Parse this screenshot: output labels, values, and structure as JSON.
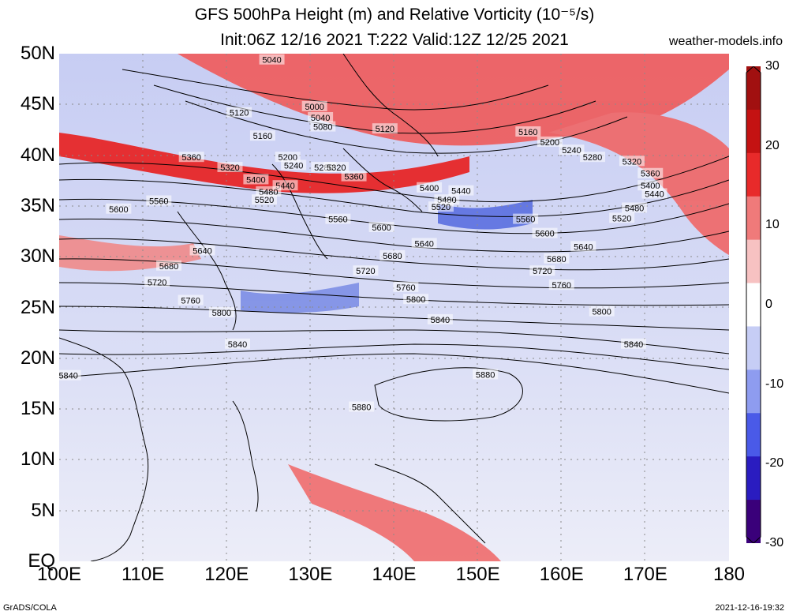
{
  "title_line1": "GFS 500hPa Height (m) and Relative Vorticity (10⁻⁵/s)",
  "title_line2": "Init:06Z 12/16 2021 T:222 Valid:12Z 12/25 2021",
  "site": "weather-models.info",
  "credit_left": "GrADS/COLA",
  "credit_right": "2021-12-16-19:32",
  "lat_labels": [
    "50N",
    "45N",
    "40N",
    "35N",
    "30N",
    "25N",
    "20N",
    "15N",
    "10N",
    "5N",
    "EQ"
  ],
  "lon_labels": [
    "100E",
    "110E",
    "120E",
    "130E",
    "140E",
    "150E",
    "160E",
    "170E",
    "180"
  ],
  "colorbar": {
    "ticks": [
      "30",
      "20",
      "10",
      "0",
      "-10",
      "-20",
      "-30"
    ],
    "colors": [
      "#3a007a",
      "#2a1cc0",
      "#4a5ae8",
      "#8e9cf0",
      "#c6cdf5",
      "#ffffff",
      "#f7c2c2",
      "#f07a7a",
      "#e82a2a",
      "#c41212",
      "#a11010"
    ]
  },
  "map": {
    "lon_range": [
      100,
      180
    ],
    "lat_range": [
      0,
      50
    ],
    "contours": [
      {
        "value": "5000",
        "labels": [
          [
            130.5,
            44.8
          ]
        ]
      },
      {
        "value": "5040",
        "labels": [
          [
            125.4,
            49.4
          ],
          [
            131.2,
            43.7
          ]
        ]
      },
      {
        "value": "5080",
        "labels": [
          [
            131.5,
            42.8
          ]
        ]
      },
      {
        "value": "5120",
        "labels": [
          [
            121.5,
            44.2
          ],
          [
            138.9,
            42.6
          ]
        ]
      },
      {
        "value": "5160",
        "labels": [
          [
            124.3,
            41.9
          ],
          [
            156.0,
            42.3
          ]
        ]
      },
      {
        "value": "5200",
        "labels": [
          [
            127.3,
            39.8
          ],
          [
            158.6,
            41.3
          ]
        ]
      },
      {
        "value": "5240",
        "labels": [
          [
            128.0,
            39.0
          ],
          [
            161.2,
            40.5
          ]
        ]
      },
      {
        "value": "5280",
        "labels": [
          [
            131.6,
            38.8
          ],
          [
            163.7,
            39.8
          ]
        ]
      },
      {
        "value": "5320",
        "labels": [
          [
            120.4,
            38.8
          ],
          [
            133.1,
            38.8
          ],
          [
            168.4,
            39.4
          ]
        ]
      },
      {
        "value": "5360",
        "labels": [
          [
            115.8,
            39.8
          ],
          [
            135.2,
            37.9
          ],
          [
            170.6,
            38.2
          ]
        ]
      },
      {
        "value": "5400",
        "labels": [
          [
            123.5,
            37.6
          ],
          [
            144.2,
            36.8
          ],
          [
            170.6,
            37.0
          ]
        ]
      },
      {
        "value": "5440",
        "labels": [
          [
            127.0,
            37.0
          ],
          [
            148.0,
            36.5
          ],
          [
            171.1,
            36.2
          ]
        ]
      },
      {
        "value": "5480",
        "labels": [
          [
            125.0,
            36.4
          ],
          [
            146.3,
            35.6
          ],
          [
            168.7,
            34.8
          ]
        ]
      },
      {
        "value": "5520",
        "labels": [
          [
            124.5,
            35.6
          ],
          [
            145.6,
            34.9
          ],
          [
            167.2,
            33.8
          ]
        ]
      },
      {
        "value": "5560",
        "labels": [
          [
            111.9,
            35.5
          ],
          [
            133.3,
            33.7
          ],
          [
            155.7,
            33.7
          ]
        ]
      },
      {
        "value": "5600",
        "labels": [
          [
            107.1,
            34.7
          ],
          [
            138.5,
            32.9
          ],
          [
            158.0,
            32.3
          ]
        ]
      },
      {
        "value": "5640",
        "labels": [
          [
            117.1,
            30.6
          ],
          [
            143.6,
            31.3
          ],
          [
            162.6,
            31.0
          ]
        ]
      },
      {
        "value": "5680",
        "labels": [
          [
            113.1,
            29.1
          ],
          [
            139.8,
            30.1
          ],
          [
            159.4,
            29.8
          ]
        ]
      },
      {
        "value": "5720",
        "labels": [
          [
            111.7,
            27.5
          ],
          [
            136.6,
            28.6
          ],
          [
            157.7,
            28.6
          ]
        ]
      },
      {
        "value": "5760",
        "labels": [
          [
            115.7,
            25.7
          ],
          [
            141.4,
            27.0
          ],
          [
            160.0,
            27.2
          ]
        ]
      },
      {
        "value": "5800",
        "labels": [
          [
            119.4,
            24.5
          ],
          [
            142.6,
            25.8
          ],
          [
            164.8,
            24.6
          ]
        ]
      },
      {
        "value": "5840",
        "labels": [
          [
            101.1,
            18.3
          ],
          [
            121.3,
            21.4
          ],
          [
            145.5,
            23.8
          ],
          [
            168.6,
            21.4
          ]
        ]
      },
      {
        "value": "5880",
        "labels": [
          [
            136.1,
            15.2
          ],
          [
            150.9,
            18.4
          ]
        ]
      }
    ]
  }
}
